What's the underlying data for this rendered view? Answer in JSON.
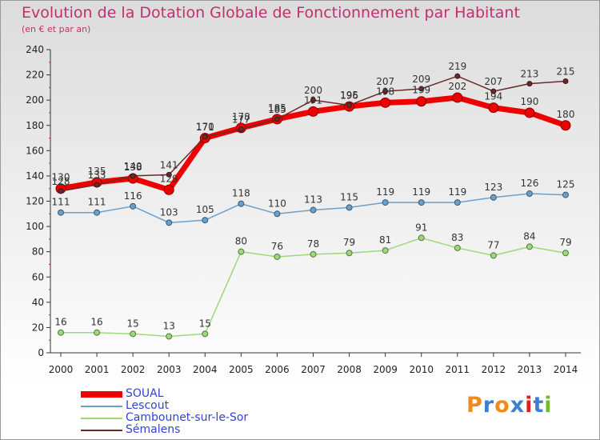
{
  "chart_data": {
    "type": "line",
    "title": "Evolution de la Dotation Globale de Fonctionnement par Habitant",
    "subtitle": "(en € et par an)",
    "x": [
      "2000",
      "2001",
      "2002",
      "2003",
      "2004",
      "2005",
      "2006",
      "2007",
      "2008",
      "2009",
      "2010",
      "2011",
      "2012",
      "2013",
      "2014"
    ],
    "ylim": [
      0,
      240
    ],
    "yticks": [
      0,
      20,
      40,
      60,
      80,
      100,
      120,
      140,
      160,
      180,
      200,
      220,
      240
    ],
    "grid": false,
    "legend_position": "bottom-left",
    "series": [
      {
        "name": "SOUAL",
        "color": "#ee0000",
        "values": [
          130,
          135,
          138,
          129,
          170,
          178,
          185,
          191,
          195,
          198,
          199,
          202,
          194,
          190,
          180
        ]
      },
      {
        "name": "Lescout",
        "color": "#6aa0cc",
        "values": [
          111,
          111,
          116,
          103,
          105,
          118,
          110,
          113,
          115,
          119,
          119,
          119,
          123,
          126,
          125
        ]
      },
      {
        "name": "Cambounet-sur-le-Sor",
        "color": "#9dd87a",
        "values": [
          16,
          16,
          15,
          13,
          15,
          80,
          76,
          78,
          79,
          81,
          91,
          83,
          77,
          84,
          79
        ]
      },
      {
        "name": "Sémalens",
        "color": "#6b2a2a",
        "values": [
          128,
          133,
          140,
          141,
          171,
          177,
          185,
          200,
          196,
          207,
          209,
          219,
          207,
          213,
          215
        ]
      }
    ]
  },
  "logo": {
    "letters": [
      "P",
      "r",
      "o",
      "x",
      "i",
      "t",
      "i"
    ],
    "colors": [
      "#f08a1c",
      "#3d7fd0",
      "#f08a1c",
      "#3d7fd0",
      "#e02020",
      "#3d7fd0",
      "#76b82a"
    ]
  }
}
